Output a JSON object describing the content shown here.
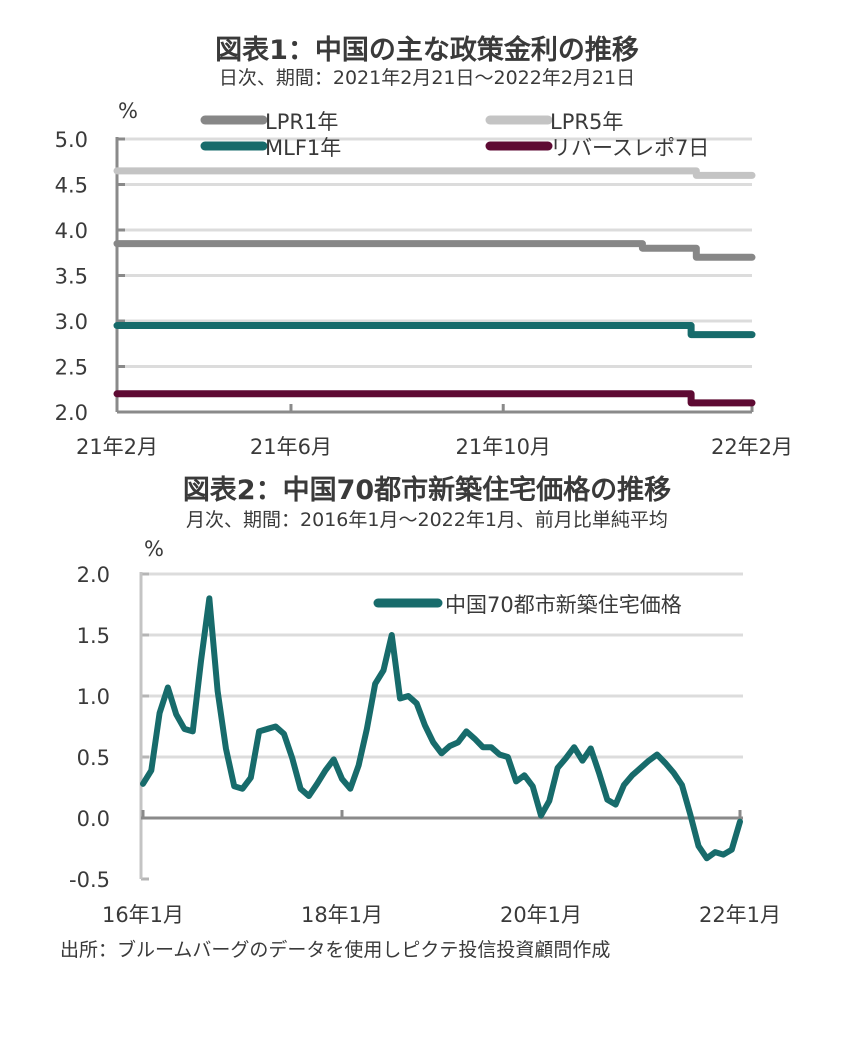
{
  "chart_data": [
    {
      "type": "line",
      "title": "図表1：中国の主な政策金利の推移",
      "subtitle": "日次、期間：2021年2月21日～2022年2月21日",
      "ylabel": "%",
      "xlabel": "",
      "ylim": [
        2.0,
        5.0
      ],
      "yticks": [
        "5.0",
        "4.5",
        "4.0",
        "3.5",
        "3.0",
        "2.5",
        "2.0"
      ],
      "ytick_values": [
        5.0,
        4.5,
        4.0,
        3.5,
        3.0,
        2.5,
        2.0
      ],
      "xticks": [
        "21年2月",
        "21年6月",
        "21年10月",
        "22年2月"
      ],
      "xtick_dates": [
        "2021-02-21",
        "2021-06-01",
        "2021-10-01",
        "2022-02-21"
      ],
      "xlim": [
        "2021-02-21",
        "2022-02-21"
      ],
      "grid": true,
      "legend_position": "top",
      "series": [
        {
          "name": "LPR1年",
          "color": "#878787",
          "points": [
            [
              "2021-02-21",
              3.85
            ],
            [
              "2021-12-20",
              3.85
            ],
            [
              "2021-12-20",
              3.8
            ],
            [
              "2022-01-20",
              3.8
            ],
            [
              "2022-01-20",
              3.7
            ],
            [
              "2022-02-21",
              3.7
            ]
          ]
        },
        {
          "name": "LPR5年",
          "color": "#c4c4c4",
          "points": [
            [
              "2021-02-21",
              4.65
            ],
            [
              "2022-01-20",
              4.65
            ],
            [
              "2022-01-20",
              4.6
            ],
            [
              "2022-02-21",
              4.6
            ]
          ]
        },
        {
          "name": "MLF1年",
          "color": "#176b6b",
          "points": [
            [
              "2021-02-21",
              2.95
            ],
            [
              "2022-01-17",
              2.95
            ],
            [
              "2022-01-17",
              2.85
            ],
            [
              "2022-02-21",
              2.85
            ]
          ]
        },
        {
          "name": "リバースレポ7日",
          "color": "#5e0a33",
          "points": [
            [
              "2021-02-21",
              2.2
            ],
            [
              "2022-01-17",
              2.2
            ],
            [
              "2022-01-17",
              2.1
            ],
            [
              "2022-02-21",
              2.1
            ]
          ]
        }
      ]
    },
    {
      "type": "line",
      "title": "図表2：中国70都市新築住宅価格の推移",
      "subtitle": "月次、期間：2016年1月～2022年1月、前月比単純平均",
      "ylabel": "%",
      "xlabel": "",
      "ylim": [
        -0.5,
        2.0
      ],
      "yticks": [
        "2.0",
        "1.5",
        "1.0",
        "0.5",
        "0.0",
        "-0.5"
      ],
      "ytick_values": [
        2.0,
        1.5,
        1.0,
        0.5,
        0.0,
        -0.5
      ],
      "xticks": [
        "16年1月",
        "18年1月",
        "20年1月",
        "22年1月"
      ],
      "xtick_index": [
        0,
        24,
        48,
        72
      ],
      "grid": true,
      "legend_position": "top-right",
      "start": "2016-01",
      "series": [
        {
          "name": "中国70都市新築住宅価格",
          "color": "#176b6b",
          "values": [
            0.28,
            0.39,
            0.86,
            1.07,
            0.85,
            0.73,
            0.71,
            1.29,
            1.8,
            1.04,
            0.57,
            0.26,
            0.24,
            0.33,
            0.71,
            0.73,
            0.75,
            0.69,
            0.49,
            0.24,
            0.18,
            0.28,
            0.39,
            0.48,
            0.32,
            0.24,
            0.43,
            0.73,
            1.1,
            1.21,
            1.5,
            0.98,
            1.0,
            0.94,
            0.76,
            0.62,
            0.53,
            0.59,
            0.62,
            0.71,
            0.65,
            0.58,
            0.58,
            0.52,
            0.5,
            0.3,
            0.35,
            0.26,
            0.02,
            0.14,
            0.41,
            0.49,
            0.58,
            0.47,
            0.57,
            0.37,
            0.15,
            0.11,
            0.27,
            0.35,
            0.41,
            0.47,
            0.52,
            0.45,
            0.37,
            0.27,
            0.03,
            -0.23,
            -0.33,
            -0.28,
            -0.3,
            -0.26,
            -0.03
          ]
        }
      ]
    }
  ],
  "source": "出所：ブルームバーグのデータを使用しピクテ投信投資顧問作成"
}
